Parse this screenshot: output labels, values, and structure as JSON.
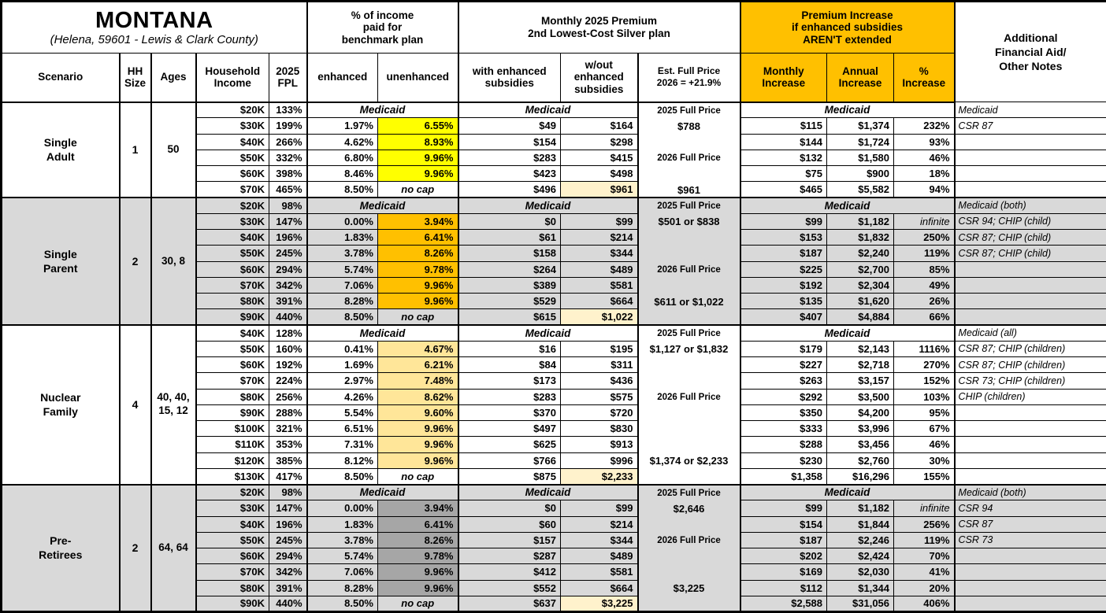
{
  "title": {
    "main": "MONTANA",
    "subtitle": "(Helena, 59601 - Lewis & Clark County)"
  },
  "colors": {
    "gold": "#FFC000",
    "yellow": "#FFFF00",
    "tan": "#FFE699",
    "dark_gray": "#A6A6A6",
    "cream": "#FFF2CC",
    "stripe_gray": "#D9D9D9",
    "white": "#FFFFFF",
    "border": "#000000"
  },
  "header": {
    "group_income_pct": "% of income\npaid for\nbenchmark plan",
    "group_premium": "Monthly 2025 Premium\n2nd Lowest-Cost Silver plan",
    "group_increase": "Premium Increase\nif enhanced subsidies\nAREN'T extended",
    "notes": "Additional\nFinancial Aid/\nOther Notes",
    "cols": {
      "scenario": "Scenario",
      "hh": "HH\nSize",
      "ages": "Ages",
      "income": "Household\nIncome",
      "fpl": "2025\nFPL",
      "enhanced": "enhanced",
      "unenhanced": "unenhanced",
      "with_sub": "with enhanced\nsubsidies",
      "wo_sub": "w/out\nenhanced\nsubsidies",
      "est_line1": "Est. Full Price",
      "est_line2": "2026 = +21.9%",
      "monthly": "Monthly\nIncrease",
      "annual": "Annual\nIncrease",
      "pct": "%\nIncrease"
    }
  },
  "labels": {
    "medicaid": "Medicaid",
    "no_cap": "no cap"
  },
  "scenarios": [
    {
      "name": "Single\nAdult",
      "hh_size": "1",
      "ages": "50",
      "stripe": false,
      "highlight": "#FFFF00",
      "full_price": [
        {
          "row": 0,
          "text": "2025 Full Price",
          "type": "label"
        },
        {
          "row": 1,
          "text": "$788",
          "type": "value"
        },
        {
          "row": 3,
          "text": "2026 Full Price",
          "type": "label"
        },
        {
          "row": 5,
          "text": "$961",
          "type": "value"
        }
      ],
      "rows": [
        {
          "income": "$20K",
          "fpl": "133%",
          "medicaid": true,
          "note": "Medicaid"
        },
        {
          "income": "$30K",
          "fpl": "199%",
          "enh": "1.97%",
          "unenh": "6.55%",
          "with_sub": "$49",
          "wo_sub": "$164",
          "monthly": "$115",
          "annual": "$1,374",
          "pct": "232%",
          "note": "CSR 87"
        },
        {
          "income": "$40K",
          "fpl": "266%",
          "enh": "4.62%",
          "unenh": "8.93%",
          "with_sub": "$154",
          "wo_sub": "$298",
          "monthly": "$144",
          "annual": "$1,724",
          "pct": "93%",
          "note": ""
        },
        {
          "income": "$50K",
          "fpl": "332%",
          "enh": "6.80%",
          "unenh": "9.96%",
          "with_sub": "$283",
          "wo_sub": "$415",
          "monthly": "$132",
          "annual": "$1,580",
          "pct": "46%",
          "note": ""
        },
        {
          "income": "$60K",
          "fpl": "398%",
          "enh": "8.46%",
          "unenh": "9.96%",
          "with_sub": "$423",
          "wo_sub": "$498",
          "monthly": "$75",
          "annual": "$900",
          "pct": "18%",
          "note": ""
        },
        {
          "income": "$70K",
          "fpl": "465%",
          "enh": "8.50%",
          "no_cap": true,
          "with_sub": "$496",
          "wo_sub": "$961",
          "wo_hl": true,
          "monthly": "$465",
          "annual": "$5,582",
          "pct": "94%",
          "note": ""
        }
      ]
    },
    {
      "name": "Single\nParent",
      "hh_size": "2",
      "ages": "30, 8",
      "stripe": true,
      "highlight": "#FFC000",
      "full_price": [
        {
          "row": 0,
          "text": "2025 Full Price",
          "type": "label"
        },
        {
          "row": 1,
          "text": "$501 or $838",
          "type": "value"
        },
        {
          "row": 4,
          "text": "2026 Full Price",
          "type": "label"
        },
        {
          "row": 6,
          "text": "$611 or $1,022",
          "type": "value"
        }
      ],
      "rows": [
        {
          "income": "$20K",
          "fpl": "98%",
          "medicaid": true,
          "note": "Medicaid (both)"
        },
        {
          "income": "$30K",
          "fpl": "147%",
          "enh": "0.00%",
          "unenh": "3.94%",
          "with_sub": "$0",
          "wo_sub": "$99",
          "monthly": "$99",
          "annual": "$1,182",
          "pct": "infinite",
          "pct_italic": true,
          "note": "CSR 94; CHIP (child)"
        },
        {
          "income": "$40K",
          "fpl": "196%",
          "enh": "1.83%",
          "unenh": "6.41%",
          "with_sub": "$61",
          "wo_sub": "$214",
          "monthly": "$153",
          "annual": "$1,832",
          "pct": "250%",
          "note": "CSR 87; CHIP (child)"
        },
        {
          "income": "$50K",
          "fpl": "245%",
          "enh": "3.78%",
          "unenh": "8.26%",
          "with_sub": "$158",
          "wo_sub": "$344",
          "monthly": "$187",
          "annual": "$2,240",
          "pct": "119%",
          "note": "CSR 87; CHIP (child)"
        },
        {
          "income": "$60K",
          "fpl": "294%",
          "enh": "5.74%",
          "unenh": "9.78%",
          "with_sub": "$264",
          "wo_sub": "$489",
          "monthly": "$225",
          "annual": "$2,700",
          "pct": "85%",
          "note": ""
        },
        {
          "income": "$70K",
          "fpl": "342%",
          "enh": "7.06%",
          "unenh": "9.96%",
          "with_sub": "$389",
          "wo_sub": "$581",
          "monthly": "$192",
          "annual": "$2,304",
          "pct": "49%",
          "note": ""
        },
        {
          "income": "$80K",
          "fpl": "391%",
          "enh": "8.28%",
          "unenh": "9.96%",
          "with_sub": "$529",
          "wo_sub": "$664",
          "monthly": "$135",
          "annual": "$1,620",
          "pct": "26%",
          "note": ""
        },
        {
          "income": "$90K",
          "fpl": "440%",
          "enh": "8.50%",
          "no_cap": true,
          "with_sub": "$615",
          "wo_sub": "$1,022",
          "wo_hl": true,
          "monthly": "$407",
          "annual": "$4,884",
          "pct": "66%",
          "note": ""
        }
      ]
    },
    {
      "name": "Nuclear\nFamily",
      "hh_size": "4",
      "ages": "40, 40,\n15, 12",
      "stripe": false,
      "highlight": "#FFE699",
      "full_price": [
        {
          "row": 0,
          "text": "2025 Full Price",
          "type": "label"
        },
        {
          "row": 1,
          "text": "$1,127 or $1,832",
          "type": "value"
        },
        {
          "row": 4,
          "text": "2026 Full Price",
          "type": "label"
        },
        {
          "row": 8,
          "text": "$1,374 or $2,233",
          "type": "value"
        }
      ],
      "rows": [
        {
          "income": "$40K",
          "fpl": "128%",
          "medicaid": true,
          "note": "Medicaid (all)"
        },
        {
          "income": "$50K",
          "fpl": "160%",
          "enh": "0.41%",
          "unenh": "4.67%",
          "with_sub": "$16",
          "wo_sub": "$195",
          "monthly": "$179",
          "annual": "$2,143",
          "pct": "1116%",
          "note": "CSR 87; CHIP (children)"
        },
        {
          "income": "$60K",
          "fpl": "192%",
          "enh": "1.69%",
          "unenh": "6.21%",
          "with_sub": "$84",
          "wo_sub": "$311",
          "monthly": "$227",
          "annual": "$2,718",
          "pct": "270%",
          "note": "CSR 87; CHIP (children)"
        },
        {
          "income": "$70K",
          "fpl": "224%",
          "enh": "2.97%",
          "unenh": "7.48%",
          "with_sub": "$173",
          "wo_sub": "$436",
          "monthly": "$263",
          "annual": "$3,157",
          "pct": "152%",
          "note": "CSR 73; CHIP (children)"
        },
        {
          "income": "$80K",
          "fpl": "256%",
          "enh": "4.26%",
          "unenh": "8.62%",
          "with_sub": "$283",
          "wo_sub": "$575",
          "monthly": "$292",
          "annual": "$3,500",
          "pct": "103%",
          "note": "CHIP (children)"
        },
        {
          "income": "$90K",
          "fpl": "288%",
          "enh": "5.54%",
          "unenh": "9.60%",
          "with_sub": "$370",
          "wo_sub": "$720",
          "monthly": "$350",
          "annual": "$4,200",
          "pct": "95%",
          "note": ""
        },
        {
          "income": "$100K",
          "fpl": "321%",
          "enh": "6.51%",
          "unenh": "9.96%",
          "with_sub": "$497",
          "wo_sub": "$830",
          "monthly": "$333",
          "annual": "$3,996",
          "pct": "67%",
          "note": ""
        },
        {
          "income": "$110K",
          "fpl": "353%",
          "enh": "7.31%",
          "unenh": "9.96%",
          "with_sub": "$625",
          "wo_sub": "$913",
          "monthly": "$288",
          "annual": "$3,456",
          "pct": "46%",
          "note": ""
        },
        {
          "income": "$120K",
          "fpl": "385%",
          "enh": "8.12%",
          "unenh": "9.96%",
          "with_sub": "$766",
          "wo_sub": "$996",
          "monthly": "$230",
          "annual": "$2,760",
          "pct": "30%",
          "note": ""
        },
        {
          "income": "$130K",
          "fpl": "417%",
          "enh": "8.50%",
          "no_cap": true,
          "with_sub": "$875",
          "wo_sub": "$2,233",
          "wo_hl": true,
          "monthly": "$1,358",
          "annual": "$16,296",
          "pct": "155%",
          "note": ""
        }
      ]
    },
    {
      "name": "Pre-\nRetirees",
      "hh_size": "2",
      "ages": "64, 64",
      "stripe": true,
      "highlight": "#A6A6A6",
      "full_price": [
        {
          "row": 0,
          "text": "2025 Full Price",
          "type": "label"
        },
        {
          "row": 1,
          "text": "$2,646",
          "type": "value"
        },
        {
          "row": 3,
          "text": "2026 Full Price",
          "type": "label"
        },
        {
          "row": 6,
          "text": "$3,225",
          "type": "value"
        }
      ],
      "rows": [
        {
          "income": "$20K",
          "fpl": "98%",
          "medicaid": true,
          "note": "Medicaid (both)"
        },
        {
          "income": "$30K",
          "fpl": "147%",
          "enh": "0.00%",
          "unenh": "3.94%",
          "with_sub": "$0",
          "wo_sub": "$99",
          "monthly": "$99",
          "annual": "$1,182",
          "pct": "infinite",
          "pct_italic": true,
          "note": "CSR 94"
        },
        {
          "income": "$40K",
          "fpl": "196%",
          "enh": "1.83%",
          "unenh": "6.41%",
          "with_sub": "$60",
          "wo_sub": "$214",
          "monthly": "$154",
          "annual": "$1,844",
          "pct": "256%",
          "note": "CSR 87"
        },
        {
          "income": "$50K",
          "fpl": "245%",
          "enh": "3.78%",
          "unenh": "8.26%",
          "with_sub": "$157",
          "wo_sub": "$344",
          "monthly": "$187",
          "annual": "$2,246",
          "pct": "119%",
          "note": "CSR 73"
        },
        {
          "income": "$60K",
          "fpl": "294%",
          "enh": "5.74%",
          "unenh": "9.78%",
          "with_sub": "$287",
          "wo_sub": "$489",
          "monthly": "$202",
          "annual": "$2,424",
          "pct": "70%",
          "note": ""
        },
        {
          "income": "$70K",
          "fpl": "342%",
          "enh": "7.06%",
          "unenh": "9.96%",
          "with_sub": "$412",
          "wo_sub": "$581",
          "monthly": "$169",
          "annual": "$2,030",
          "pct": "41%",
          "note": ""
        },
        {
          "income": "$80K",
          "fpl": "391%",
          "enh": "8.28%",
          "unenh": "9.96%",
          "with_sub": "$552",
          "wo_sub": "$664",
          "monthly": "$112",
          "annual": "$1,344",
          "pct": "20%",
          "note": ""
        },
        {
          "income": "$90K",
          "fpl": "440%",
          "enh": "8.50%",
          "no_cap": true,
          "with_sub": "$637",
          "wo_sub": "$3,225",
          "wo_hl": true,
          "monthly": "$2,588",
          "annual": "$31,056",
          "pct": "406%",
          "note": ""
        }
      ]
    }
  ]
}
